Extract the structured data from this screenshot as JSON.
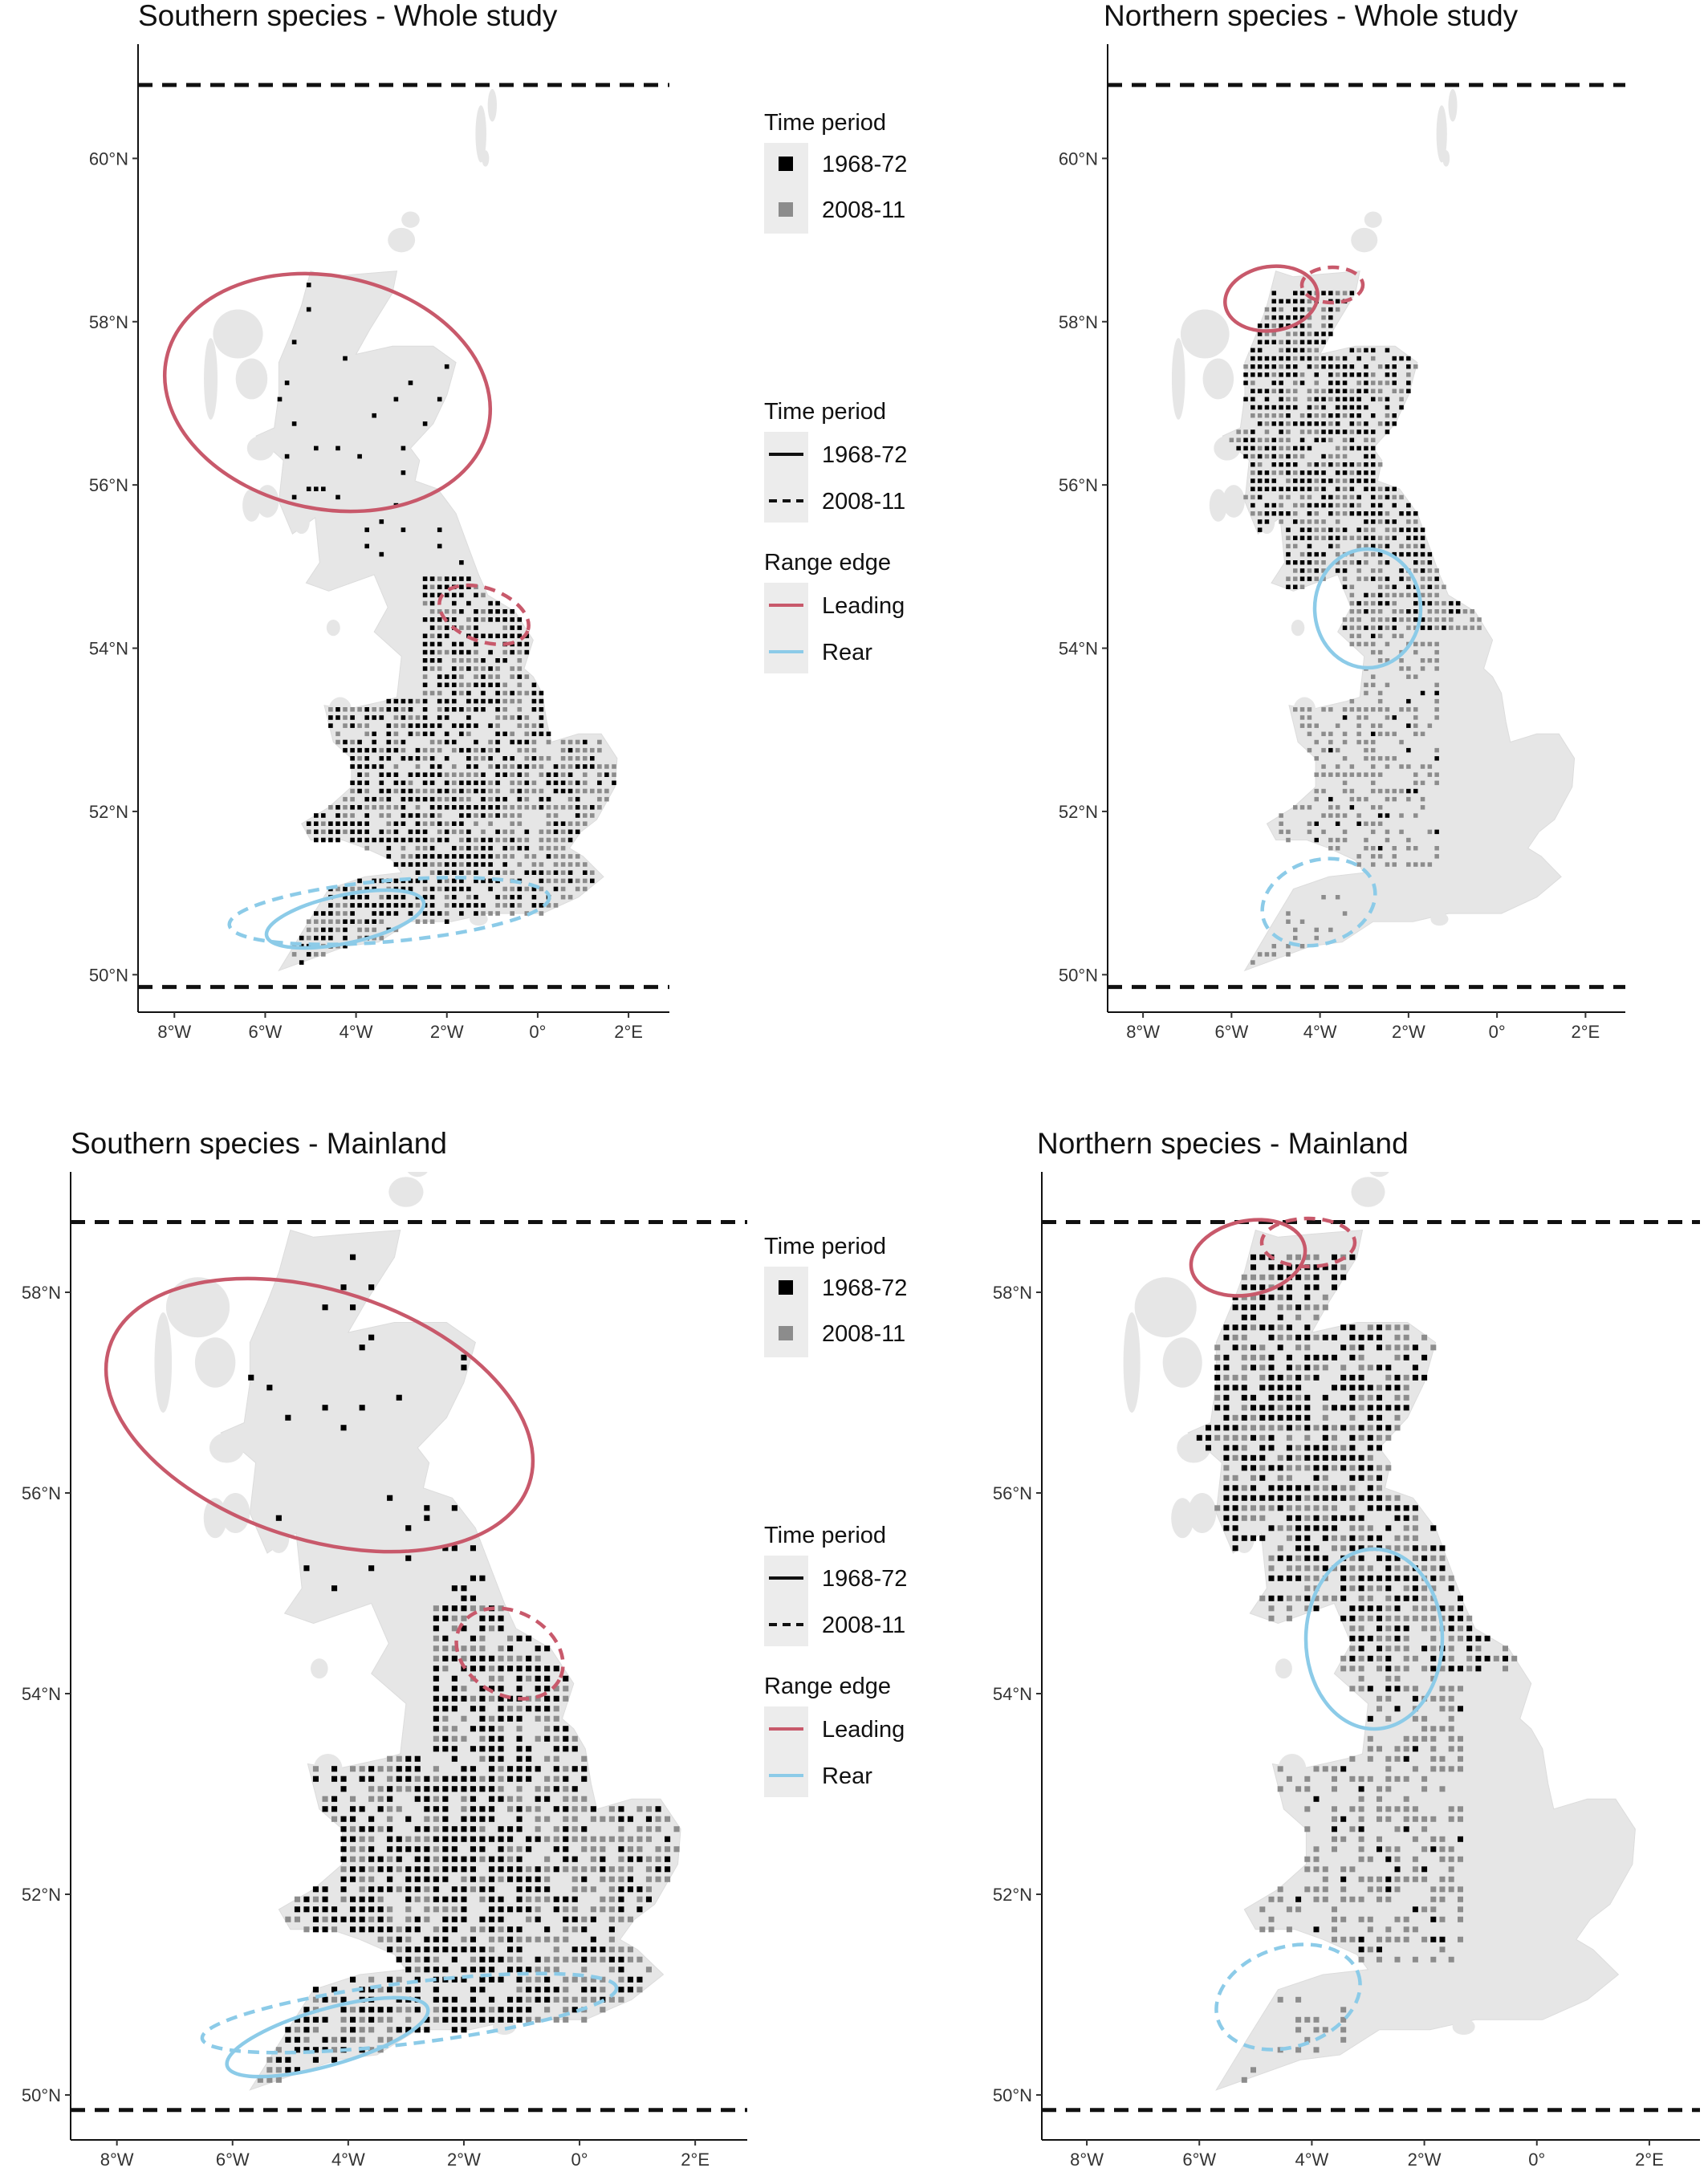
{
  "colors": {
    "period_1968": "#000000",
    "period_2008": "#8c8c8c",
    "leading": "#c8596b",
    "rear": "#8ccbe8",
    "land": "#e6e6e6",
    "legend_key_bg": "#ececec"
  },
  "legend_text": {
    "time_period_title": "Time period",
    "range_edge_title": "Range edge",
    "period_1968": "1968-72",
    "period_2008": "2008-11",
    "leading": "Leading",
    "rear": "Rear"
  },
  "panels": [
    {
      "title": "Southern species - Whole study",
      "lat_ticks": [
        {
          "value": 50,
          "label": "50°N"
        },
        {
          "value": 52,
          "label": "52°N"
        },
        {
          "value": 54,
          "label": "54°N"
        },
        {
          "value": 56,
          "label": "56°N"
        },
        {
          "value": 58,
          "label": "58°N"
        },
        {
          "value": 60,
          "label": "60°N"
        }
      ],
      "lon_ticks": [
        {
          "value": -8,
          "label": "8°W"
        },
        {
          "value": -6,
          "label": "6°W"
        },
        {
          "value": -4,
          "label": "4°W"
        },
        {
          "value": -2,
          "label": "2°W"
        },
        {
          "value": 0,
          "label": "0°"
        },
        {
          "value": 2,
          "label": "2°E"
        }
      ],
      "lat_range": [
        49.6,
        61.4
      ],
      "lon_range": [
        -8.8,
        2.9
      ],
      "boundary_lats": [
        60.9,
        49.85
      ],
      "show_legend": true,
      "occupancy": "southern"
    },
    {
      "title": "Northern species - Whole study",
      "lat_ticks": [
        {
          "value": 50,
          "label": "50°N"
        },
        {
          "value": 52,
          "label": "52°N"
        },
        {
          "value": 54,
          "label": "54°N"
        },
        {
          "value": 56,
          "label": "56°N"
        },
        {
          "value": 58,
          "label": "58°N"
        },
        {
          "value": 60,
          "label": "60°N"
        }
      ],
      "lon_ticks": [
        {
          "value": -8,
          "label": "8°W"
        },
        {
          "value": -6,
          "label": "6°W"
        },
        {
          "value": -4,
          "label": "4°W"
        },
        {
          "value": -2,
          "label": "2°W"
        },
        {
          "value": 0,
          "label": "0°"
        },
        {
          "value": 2,
          "label": "2°E"
        }
      ],
      "lat_range": [
        49.6,
        61.4
      ],
      "lon_range": [
        -8.8,
        2.9
      ],
      "boundary_lats": [
        60.9,
        49.85
      ],
      "show_legend": false,
      "occupancy": "northern"
    },
    {
      "title": "Southern species - Mainland",
      "lat_ticks": [
        {
          "value": 50,
          "label": "50°N"
        },
        {
          "value": 52,
          "label": "52°N"
        },
        {
          "value": 54,
          "label": "54°N"
        },
        {
          "value": 56,
          "label": "56°N"
        },
        {
          "value": 58,
          "label": "58°N"
        }
      ],
      "lon_ticks": [
        {
          "value": -8,
          "label": "8°W"
        },
        {
          "value": -6,
          "label": "6°W"
        },
        {
          "value": -4,
          "label": "4°W"
        },
        {
          "value": -2,
          "label": "2°W"
        },
        {
          "value": 0,
          "label": "0°"
        },
        {
          "value": 2,
          "label": "2°E"
        }
      ],
      "lat_range": [
        49.6,
        59.2
      ],
      "lon_range": [
        -8.8,
        2.9
      ],
      "boundary_lats": [
        58.7,
        49.85
      ],
      "show_legend": true,
      "occupancy": "southern"
    },
    {
      "title": "Northern species - Mainland",
      "lat_ticks": [
        {
          "value": 50,
          "label": "50°N"
        },
        {
          "value": 52,
          "label": "52°N"
        },
        {
          "value": 54,
          "label": "54°N"
        },
        {
          "value": 56,
          "label": "56°N"
        },
        {
          "value": 58,
          "label": "58°N"
        }
      ],
      "lon_ticks": [
        {
          "value": -8,
          "label": "8°W"
        },
        {
          "value": -6,
          "label": "6°W"
        },
        {
          "value": -4,
          "label": "4°W"
        },
        {
          "value": -2,
          "label": "2°W"
        },
        {
          "value": 0,
          "label": "0°"
        },
        {
          "value": 2,
          "label": "2°E"
        }
      ],
      "lat_range": [
        49.6,
        59.2
      ],
      "lon_range": [
        -8.8,
        2.9
      ],
      "boundary_lats": [
        58.7,
        49.85
      ],
      "show_legend": false,
      "occupancy": "northern"
    }
  ]
}
